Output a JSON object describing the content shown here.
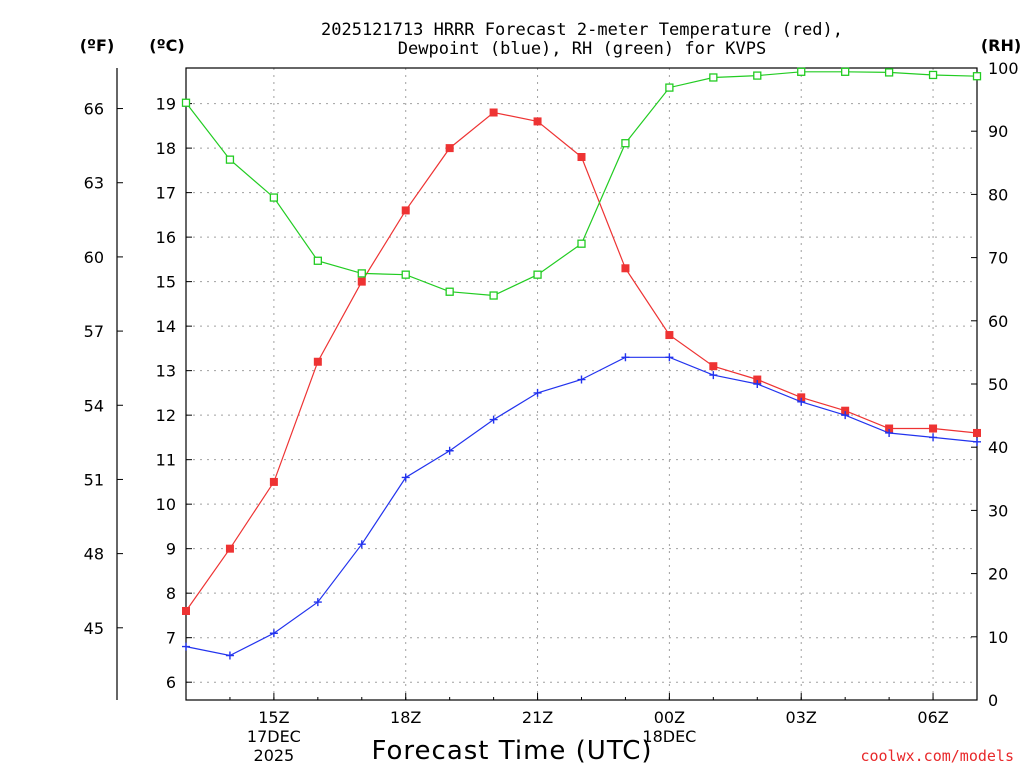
{
  "chart_data": {
    "type": "line",
    "title_line1": "2025121713 HRRR Forecast 2-meter Temperature (red),",
    "title_line2": "Dewpoint (blue), RH (green) for KVPS",
    "xlabel": "Forecast Time (UTC)",
    "credit": "coolwx.com/models",
    "unit_labels": {
      "fahrenheit": "(ºF)",
      "celsius": "(ºC)",
      "rh": "(RH)"
    },
    "x_hours": [
      13,
      14,
      15,
      16,
      17,
      18,
      19,
      20,
      21,
      22,
      23,
      24,
      25,
      26,
      27,
      28,
      29,
      30,
      31
    ],
    "xlim": [
      13,
      31
    ],
    "x_ticks": [
      {
        "hour": 15,
        "label": "15Z",
        "sub1": "17DEC",
        "sub2": "2025"
      },
      {
        "hour": 18,
        "label": "18Z",
        "sub1": "",
        "sub2": ""
      },
      {
        "hour": 21,
        "label": "21Z",
        "sub1": "",
        "sub2": ""
      },
      {
        "hour": 24,
        "label": "00Z",
        "sub1": "18DEC",
        "sub2": ""
      },
      {
        "hour": 27,
        "label": "03Z",
        "sub1": "",
        "sub2": ""
      },
      {
        "hour": 30,
        "label": "06Z",
        "sub1": "",
        "sub2": ""
      }
    ],
    "celsius_ylim": [
      5.6,
      19.8
    ],
    "celsius_ticks": [
      6,
      7,
      8,
      9,
      10,
      11,
      12,
      13,
      14,
      15,
      16,
      17,
      18,
      19
    ],
    "fahrenheit_ticks": [
      45,
      48,
      51,
      54,
      57,
      60,
      63,
      66
    ],
    "rh_ylim": [
      0,
      100
    ],
    "rh_ticks": [
      0,
      10,
      20,
      30,
      40,
      50,
      60,
      70,
      80,
      90,
      100
    ],
    "series": [
      {
        "name": "Temperature",
        "axis": "celsius",
        "color": "#ee3333",
        "marker": "filled-square",
        "values": [
          7.6,
          9.0,
          10.5,
          13.2,
          15.0,
          16.6,
          18.0,
          18.8,
          18.6,
          17.8,
          15.3,
          13.8,
          13.1,
          12.8,
          12.4,
          12.1,
          11.7,
          11.7,
          11.6
        ]
      },
      {
        "name": "Dewpoint",
        "axis": "celsius",
        "color": "#2233ee",
        "marker": "plus",
        "values": [
          6.8,
          6.6,
          7.1,
          7.8,
          9.1,
          10.6,
          11.2,
          11.9,
          12.5,
          12.8,
          13.3,
          13.3,
          12.9,
          12.7,
          12.3,
          12.0,
          11.6,
          11.5,
          11.4
        ]
      },
      {
        "name": "RH",
        "axis": "rh",
        "color": "#22cc22",
        "marker": "open-square",
        "values": [
          94.5,
          85.5,
          79.5,
          69.5,
          67.5,
          67.3,
          64.6,
          64.0,
          67.3,
          72.2,
          88.1,
          96.9,
          98.5,
          98.8,
          99.4,
          99.4,
          99.3,
          98.9,
          98.7
        ]
      }
    ]
  }
}
